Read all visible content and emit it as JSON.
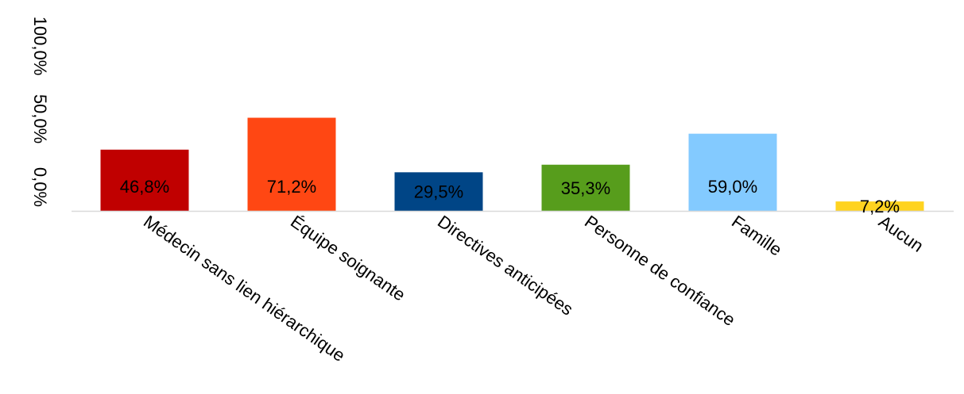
{
  "chart_data": {
    "type": "bar",
    "categories": [
      "Médecin sans lien hiérarchique",
      "Équipe soignante",
      "Directives anticipées",
      "Personne de confiance",
      "Famille",
      "Aucun"
    ],
    "values": [
      46.8,
      71.2,
      29.5,
      35.3,
      59.0,
      7.2
    ],
    "value_labels": [
      "46,8%",
      "71,2%",
      "29,5%",
      "35,3%",
      "59,0%",
      "7,2%"
    ],
    "colors": [
      "#c00000",
      "#ff4713",
      "#004586",
      "#579d1c",
      "#83caff",
      "#ffd320"
    ],
    "ytick_labels": [
      "0,0%",
      "50,0%",
      "100,0%"
    ],
    "ylim": [
      0,
      100
    ],
    "grid": false,
    "legend": "none"
  }
}
